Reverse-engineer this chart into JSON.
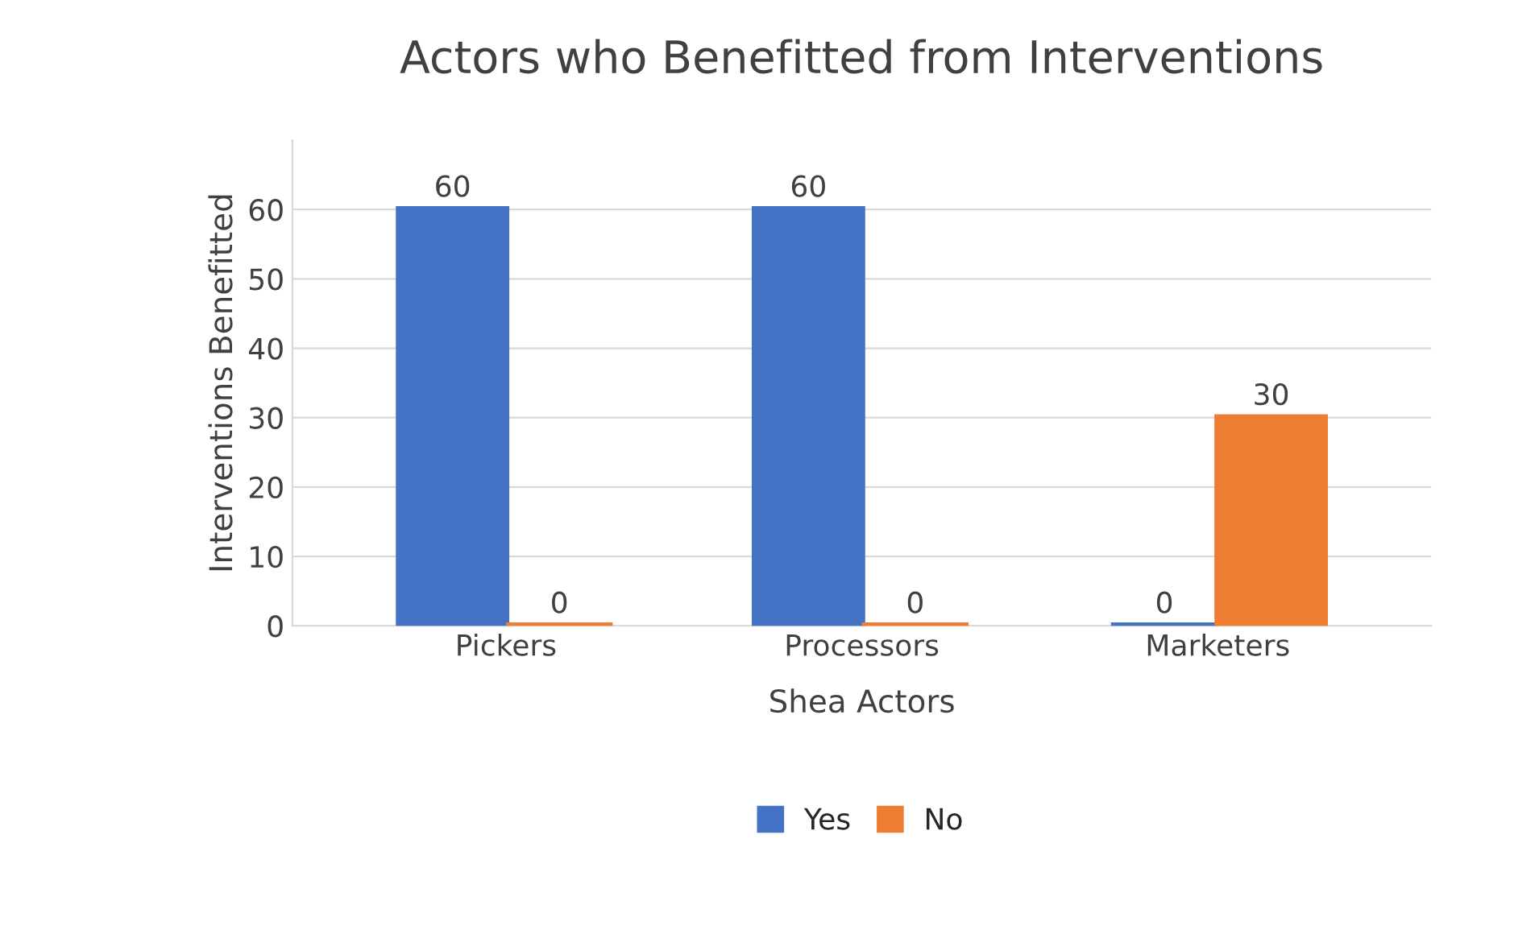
{
  "chart_data": {
    "type": "bar",
    "title": "Actors who Benefitted from Interventions",
    "xlabel": "Shea Actors",
    "ylabel": "Interventions Benefitted",
    "categories": [
      "Pickers",
      "Processors",
      "Marketers"
    ],
    "series": [
      {
        "name": "Yes",
        "color": "#4472c4",
        "values": [
          60,
          60,
          0
        ]
      },
      {
        "name": "No",
        "color": "#ed7d31",
        "values": [
          0,
          0,
          30
        ]
      }
    ],
    "ylim": [
      0,
      70
    ],
    "yticks": [
      0,
      10,
      20,
      30,
      40,
      50,
      60
    ],
    "grid": "y",
    "data_labels": true,
    "legend": "bottom"
  }
}
